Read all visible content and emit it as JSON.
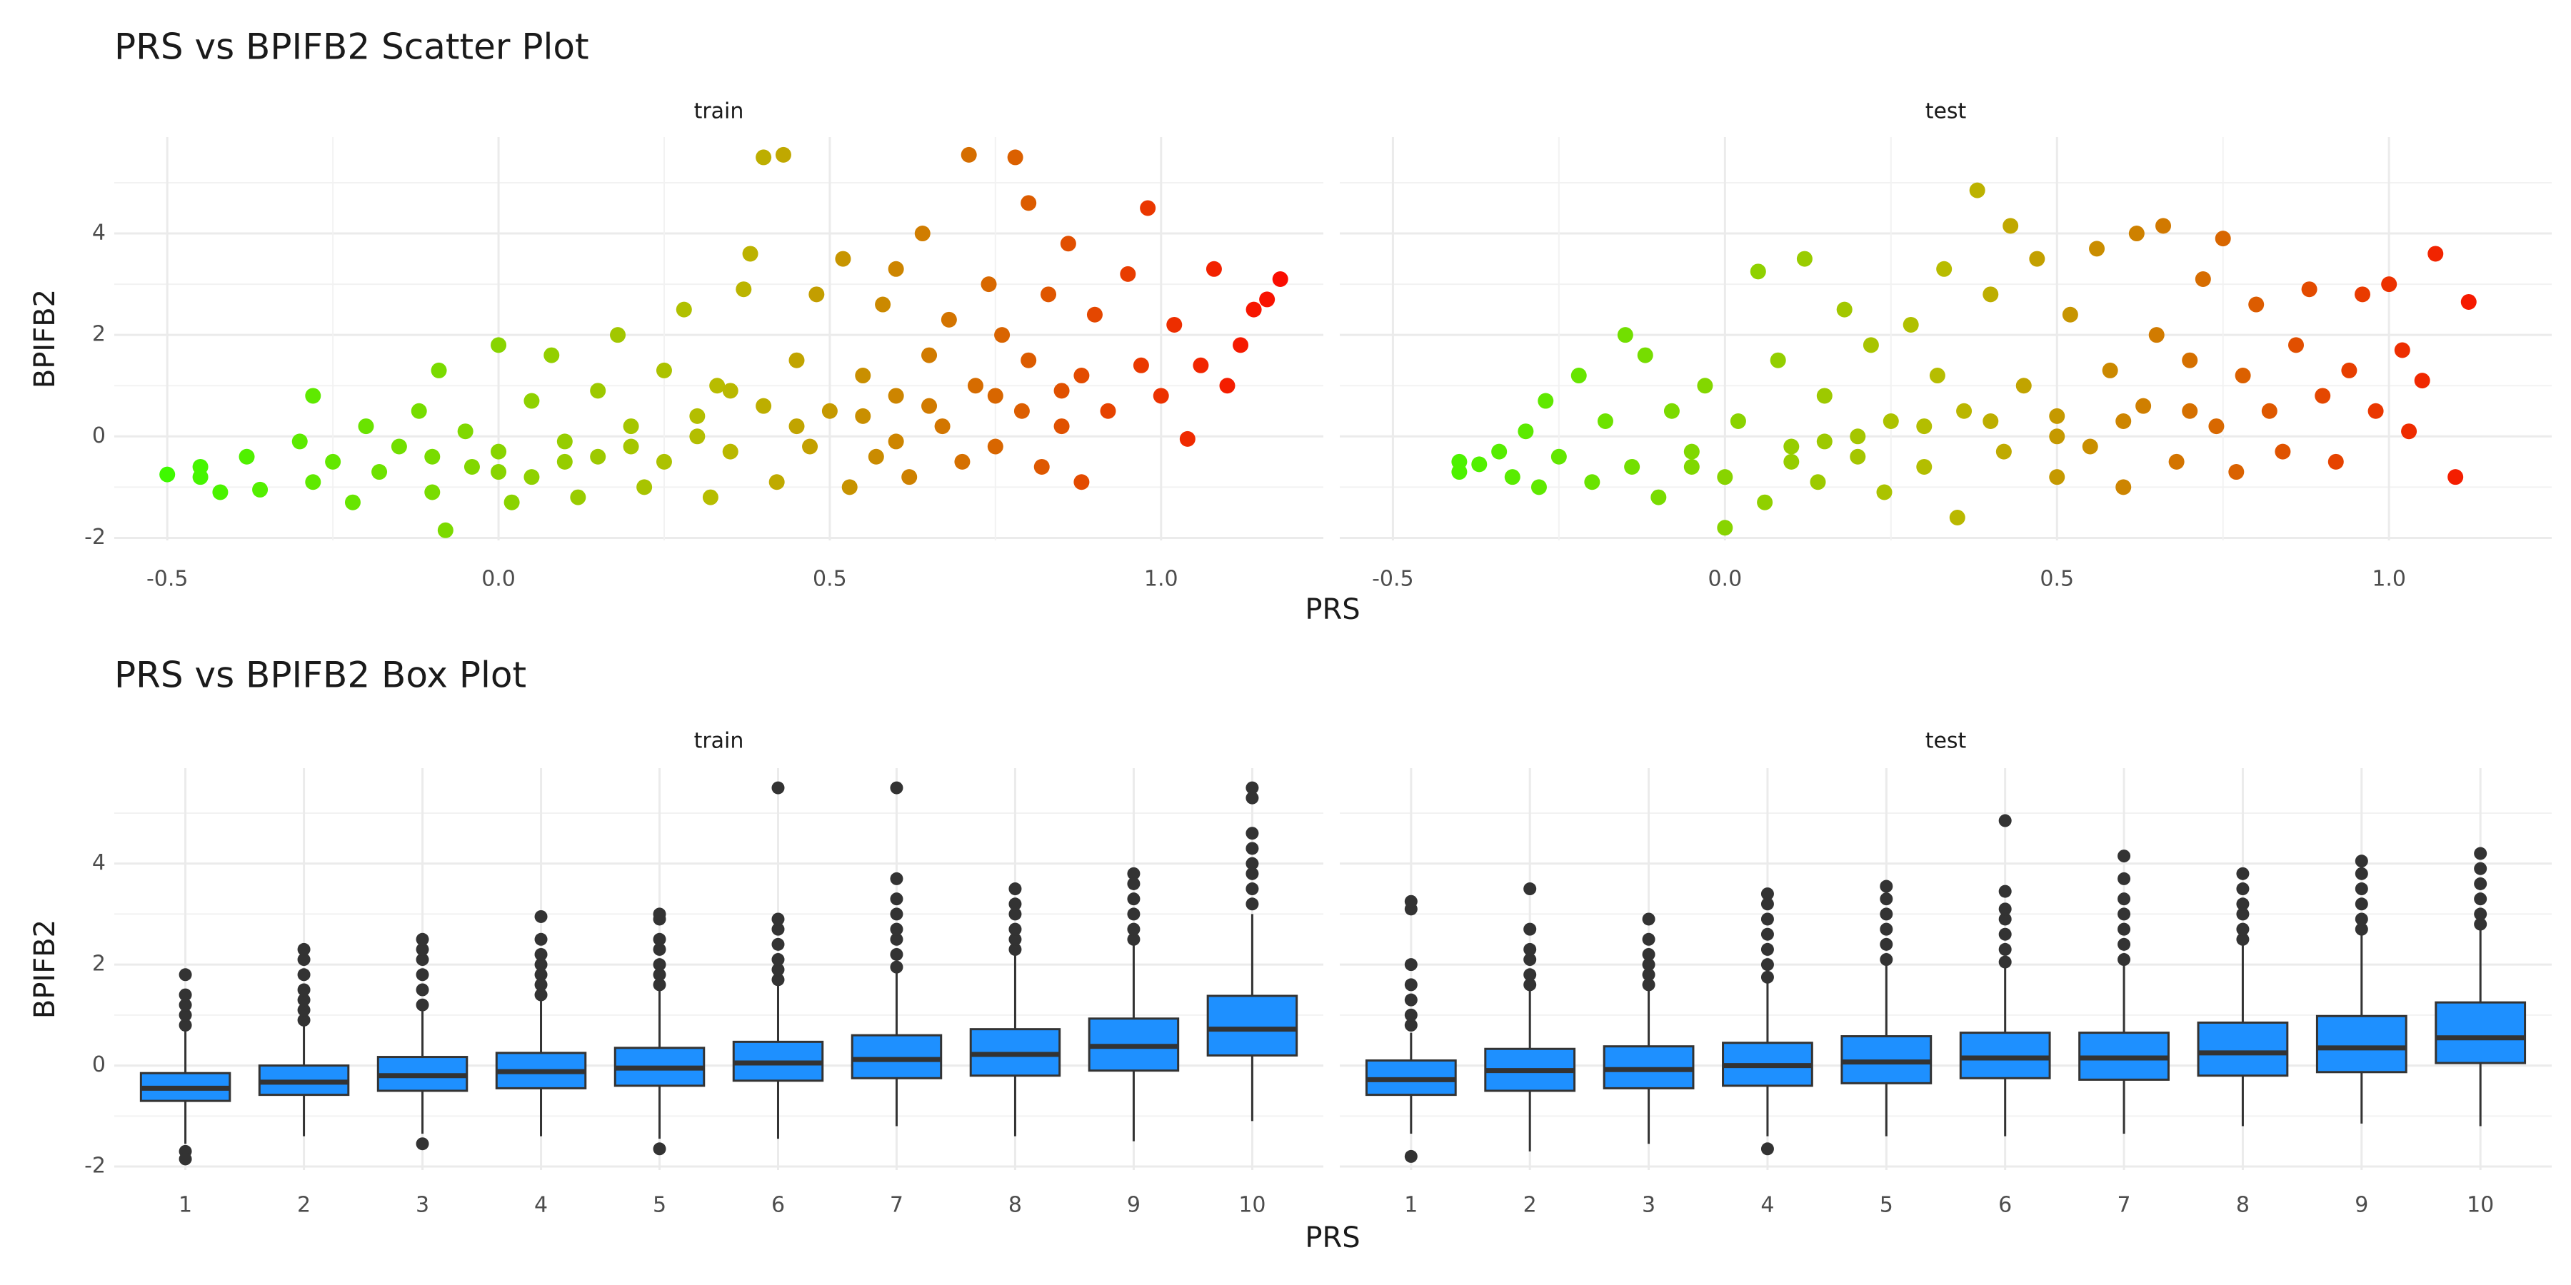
{
  "chart_data": [
    {
      "type": "scatter",
      "title": "PRS vs BPIFB2 Scatter Plot",
      "x_label": "PRS",
      "y_label": "BPIFB2",
      "xlim": [
        -0.58,
        1.245
      ],
      "xticks": [
        -0.5,
        {
          "value": 0,
          "label": "0.0"
        },
        0.5,
        {
          "value": 1,
          "label": "1.0"
        }
      ],
      "ylim": [
        -2.05,
        5.9
      ],
      "yticks": [
        -2,
        0,
        2,
        4
      ],
      "grid": true,
      "colors": [
        "#33ff00",
        "#b8bc00",
        "#ff0000"
      ],
      "facets": [
        {
          "name": "train",
          "x": [
            -0.5,
            -0.45,
            -0.45,
            -0.42,
            -0.38,
            -0.36,
            -0.3,
            -0.28,
            -0.28,
            -0.25,
            -0.22,
            -0.2,
            -0.18,
            -0.15,
            -0.12,
            -0.1,
            -0.09,
            -0.08,
            -0.05,
            -0.04,
            0,
            0,
            0.02,
            0.05,
            0.05,
            0.08,
            0.1,
            0.12,
            0.15,
            0.15,
            0.18,
            0.2,
            0.22,
            0.25,
            0.25,
            0.28,
            0.3,
            0.32,
            0.33,
            0.35,
            0.37,
            0.38,
            0.4,
            0.4,
            0.42,
            0.43,
            0.45,
            0.47,
            0.48,
            0.5,
            0.52,
            0.53,
            0.55,
            0.57,
            0.58,
            0.6,
            0.6,
            0.62,
            0.64,
            0.65,
            0.67,
            0.68,
            0.7,
            0.71,
            0.72,
            0.74,
            0.75,
            0.76,
            0.78,
            0.79,
            0.8,
            0.8,
            0.82,
            0.83,
            0.85,
            0.86,
            0.88,
            0.88,
            0.9,
            0.92,
            0.95,
            0.97,
            0.98,
            1.0,
            1.02,
            1.04,
            1.06,
            1.08,
            1.1,
            1.12,
            1.14,
            1.16,
            1.18,
            0.1,
            0.2,
            0.3,
            0.45,
            0.55,
            0.65,
            0.75,
            0.85,
            0.0,
            -0.1,
            0.35,
            0.6
          ],
          "y": [
            -0.75,
            -0.6,
            -0.8,
            -1.1,
            -0.4,
            -1.05,
            -0.1,
            -0.9,
            0.8,
            -0.5,
            -1.3,
            0.2,
            -0.7,
            -0.2,
            0.5,
            -1.1,
            1.3,
            -1.85,
            0.1,
            -0.6,
            1.8,
            -0.3,
            -1.3,
            0.7,
            -0.8,
            1.6,
            -0.1,
            -1.2,
            0.9,
            -0.4,
            2.0,
            0.2,
            -1.0,
            1.3,
            -0.5,
            2.5,
            0.4,
            -1.2,
            1.0,
            -0.3,
            2.9,
            3.6,
            0.6,
            5.5,
            -0.9,
            5.55,
            1.5,
            -0.2,
            2.8,
            0.5,
            3.5,
            -1.0,
            1.2,
            -0.4,
            2.6,
            0.8,
            3.3,
            -0.8,
            4.0,
            1.6,
            0.2,
            2.3,
            -0.5,
            5.55,
            1.0,
            3.0,
            -0.2,
            2.0,
            5.5,
            0.5,
            4.6,
            1.5,
            -0.6,
            2.8,
            0.2,
            3.8,
            1.2,
            -0.9,
            2.4,
            0.5,
            3.2,
            1.4,
            4.5,
            0.8,
            2.2,
            -0.05,
            1.4,
            3.3,
            1.0,
            1.8,
            2.5,
            2.7,
            3.1,
            -0.5,
            -0.2,
            0,
            0.2,
            0.4,
            0.6,
            0.8,
            0.9,
            -0.7,
            -0.4,
            0.9,
            -0.1
          ]
        },
        {
          "name": "test",
          "x": [
            -0.4,
            -0.4,
            -0.37,
            -0.34,
            -0.32,
            -0.3,
            -0.28,
            -0.27,
            -0.25,
            -0.22,
            -0.2,
            -0.18,
            -0.15,
            -0.14,
            -0.12,
            -0.1,
            -0.08,
            -0.05,
            -0.03,
            0,
            0,
            0.02,
            0.05,
            0.06,
            0.08,
            0.1,
            0.12,
            0.14,
            0.15,
            0.18,
            0.2,
            0.22,
            0.24,
            0.25,
            0.28,
            0.3,
            0.32,
            0.33,
            0.35,
            0.36,
            0.38,
            0.4,
            0.42,
            0.43,
            0.45,
            0.47,
            0.5,
            0.5,
            0.52,
            0.55,
            0.56,
            0.58,
            0.6,
            0.62,
            0.63,
            0.65,
            0.66,
            0.68,
            0.7,
            0.72,
            0.74,
            0.75,
            0.77,
            0.78,
            0.8,
            0.82,
            0.84,
            0.86,
            0.88,
            0.9,
            0.92,
            0.94,
            0.96,
            0.98,
            1.0,
            1.02,
            1.03,
            1.05,
            1.07,
            1.1,
            1.12,
            0.1,
            0.2,
            0.3,
            0.4,
            0.5,
            0.6,
            0.7,
            -0.05,
            0.15
          ],
          "y": [
            -0.5,
            -0.7,
            -0.55,
            -0.3,
            -0.8,
            0.1,
            -1.0,
            0.7,
            -0.4,
            1.2,
            -0.9,
            0.3,
            2.0,
            -0.6,
            1.6,
            -1.2,
            0.5,
            -0.3,
            1.0,
            -0.8,
            -1.8,
            0.3,
            3.25,
            -1.3,
            1.5,
            -0.2,
            3.5,
            -0.9,
            0.8,
            2.5,
            -0.4,
            1.8,
            -1.1,
            0.3,
            2.2,
            -0.6,
            1.2,
            3.3,
            -1.6,
            0.5,
            4.85,
            2.8,
            -0.3,
            4.15,
            1.0,
            3.5,
            -0.8,
            0.4,
            2.4,
            -0.2,
            3.7,
            1.3,
            -1.0,
            4.0,
            0.6,
            2.0,
            4.15,
            -0.5,
            1.5,
            3.1,
            0.2,
            3.9,
            -0.7,
            1.2,
            2.6,
            0.5,
            -0.3,
            1.8,
            2.9,
            0.8,
            -0.5,
            1.3,
            2.8,
            0.5,
            3.0,
            1.7,
            0.1,
            1.1,
            3.6,
            -0.8,
            2.65,
            -0.5,
            0,
            0.2,
            0.3,
            0,
            0.3,
            0.5,
            -0.6,
            -0.1
          ]
        }
      ]
    },
    {
      "type": "box",
      "title": "PRS vs BPIFB2 Box Plot",
      "x_label": "PRS",
      "y_label": "BPIFB2",
      "categories": [
        "1",
        "2",
        "3",
        "4",
        "5",
        "6",
        "7",
        "8",
        "9",
        "10"
      ],
      "ylim": [
        -2.07,
        5.89
      ],
      "yticks": [
        -2,
        0,
        2,
        4
      ],
      "grid": true,
      "color": "#1e90ff",
      "line_color": "#333333",
      "facets": [
        {
          "name": "train",
          "low": [
            -1.55,
            -1.4,
            -1.35,
            -1.4,
            -1.45,
            -1.45,
            -1.2,
            -1.4,
            -1.5,
            -1.1
          ],
          "q1": [
            -0.7,
            -0.58,
            -0.5,
            -0.45,
            -0.4,
            -0.3,
            -0.25,
            -0.2,
            -0.1,
            0.2
          ],
          "median": [
            -0.45,
            -0.33,
            -0.2,
            -0.12,
            -0.05,
            0.05,
            0.12,
            0.22,
            0.38,
            0.72
          ],
          "q3": [
            -0.15,
            0.0,
            0.17,
            0.25,
            0.35,
            0.47,
            0.6,
            0.72,
            0.93,
            1.38
          ],
          "high": [
            0.7,
            0.8,
            1.1,
            1.3,
            1.5,
            1.6,
            1.85,
            2.2,
            2.4,
            3.0
          ],
          "outliers": [
            [
              0.8,
              1.0,
              1.2,
              1.4,
              1.8,
              -1.7,
              -1.85
            ],
            [
              0.9,
              1.1,
              1.3,
              1.5,
              1.8,
              2.1,
              2.3
            ],
            [
              1.2,
              1.5,
              1.8,
              2.1,
              2.3,
              2.5,
              -1.55
            ],
            [
              1.4,
              1.6,
              1.8,
              2.0,
              2.2,
              2.5,
              2.95
            ],
            [
              1.6,
              1.8,
              2.0,
              2.3,
              2.5,
              2.9,
              3.0,
              -1.65
            ],
            [
              1.7,
              1.9,
              2.1,
              2.4,
              2.7,
              2.9,
              5.5
            ],
            [
              1.95,
              2.2,
              2.5,
              2.7,
              3.0,
              3.3,
              3.7,
              5.5
            ],
            [
              2.3,
              2.5,
              2.7,
              3.0,
              3.2,
              3.5
            ],
            [
              2.5,
              2.7,
              3.0,
              3.3,
              3.6,
              3.8
            ],
            [
              3.2,
              3.5,
              3.8,
              4.0,
              4.3,
              4.6,
              5.3,
              5.5
            ]
          ]
        },
        {
          "name": "test",
          "low": [
            -1.35,
            -1.7,
            -1.55,
            -1.4,
            -1.4,
            -1.4,
            -1.35,
            -1.2,
            -1.15,
            -1.2
          ],
          "q1": [
            -0.58,
            -0.5,
            -0.45,
            -0.4,
            -0.35,
            -0.25,
            -0.28,
            -0.2,
            -0.13,
            0.05
          ],
          "median": [
            -0.28,
            -0.1,
            -0.08,
            0.0,
            0.07,
            0.15,
            0.15,
            0.25,
            0.35,
            0.55
          ],
          "q3": [
            0.1,
            0.33,
            0.38,
            0.45,
            0.58,
            0.65,
            0.65,
            0.85,
            0.98,
            1.25
          ],
          "high": [
            0.65,
            1.5,
            1.5,
            1.65,
            2.0,
            1.95,
            2.0,
            2.4,
            2.6,
            2.7
          ],
          "outliers": [
            [
              0.8,
              1.0,
              1.3,
              1.6,
              2.0,
              3.1,
              3.25,
              -1.8
            ],
            [
              1.6,
              1.8,
              2.1,
              2.3,
              2.7,
              3.5
            ],
            [
              1.6,
              1.8,
              2.0,
              2.2,
              2.5,
              2.9
            ],
            [
              1.75,
              2.0,
              2.3,
              2.6,
              2.9,
              3.2,
              3.4,
              -1.65
            ],
            [
              2.1,
              2.4,
              2.7,
              3.0,
              3.3,
              3.55
            ],
            [
              2.05,
              2.3,
              2.6,
              2.9,
              3.1,
              3.45,
              4.85
            ],
            [
              2.1,
              2.4,
              2.7,
              3.0,
              3.3,
              3.7,
              4.15
            ],
            [
              2.5,
              2.7,
              3.0,
              3.2,
              3.5,
              3.8
            ],
            [
              2.7,
              2.9,
              3.2,
              3.5,
              3.8,
              4.05
            ],
            [
              2.8,
              3.0,
              3.3,
              3.6,
              3.9,
              4.2
            ]
          ]
        }
      ]
    }
  ]
}
